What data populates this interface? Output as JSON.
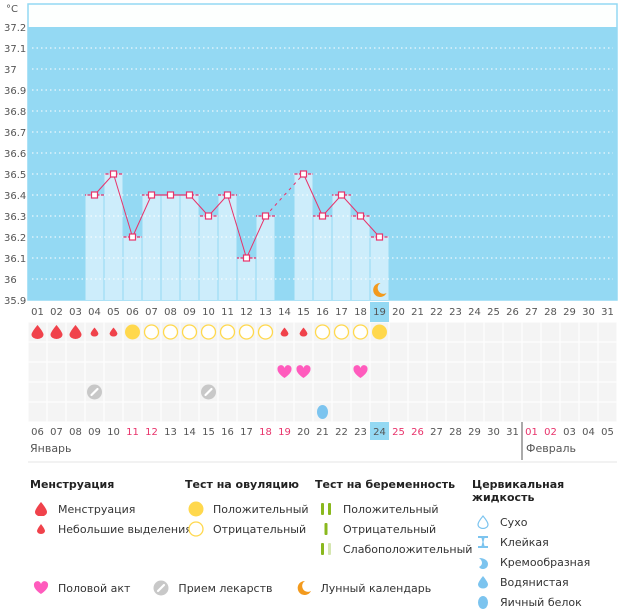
{
  "chart_data": {
    "type": "bar",
    "title": "",
    "ylabel": "°C",
    "ylim": [
      35.9,
      37.2
    ],
    "yticks": [
      "37.2",
      "37.1",
      "37",
      "36.9",
      "36.8",
      "36.7",
      "36.6",
      "36.5",
      "36.4",
      "36.3",
      "36.2",
      "36.1",
      "36",
      "35.9"
    ],
    "cycle_days": [
      "01",
      "02",
      "03",
      "04",
      "05",
      "06",
      "07",
      "08",
      "09",
      "10",
      "11",
      "12",
      "13",
      "14",
      "15",
      "16",
      "17",
      "18",
      "19",
      "20",
      "21",
      "22",
      "23",
      "24",
      "25",
      "26",
      "27",
      "28",
      "29",
      "30",
      "31"
    ],
    "temperatures": [
      null,
      null,
      null,
      36.4,
      36.5,
      36.2,
      36.4,
      36.4,
      36.4,
      36.3,
      36.4,
      36.1,
      36.3,
      null,
      36.5,
      36.3,
      36.4,
      36.3,
      36.2,
      null,
      null,
      null,
      null,
      null,
      null,
      null,
      null,
      null,
      null,
      null,
      null
    ],
    "dashed_segments": [
      [
        13,
        15
      ]
    ],
    "current_cycle_day": 19,
    "lunar_marker_day": 19,
    "calendar_dates": [
      "06",
      "07",
      "08",
      "09",
      "10",
      "11",
      "12",
      "13",
      "14",
      "15",
      "16",
      "17",
      "18",
      "19",
      "20",
      "21",
      "22",
      "23",
      "24",
      "25",
      "26",
      "27",
      "28",
      "29",
      "30",
      "31",
      "01",
      "02",
      "03",
      "04",
      "05"
    ],
    "weekend_dates_index": [
      6,
      7,
      13,
      14,
      20,
      21,
      27,
      28
    ],
    "months": [
      {
        "label": "Январь",
        "start_index": 1
      },
      {
        "label": "Февраль",
        "start_index": 27
      }
    ],
    "rows": {
      "menstruation": [
        "heavy",
        "heavy",
        "heavy",
        "light",
        "light",
        null,
        null,
        null,
        null,
        null,
        null,
        null,
        null,
        "light",
        "light",
        null,
        null,
        null,
        null,
        null,
        null,
        null,
        null,
        null,
        null,
        null,
        null,
        null,
        null,
        null,
        null
      ],
      "ovulation_test": [
        null,
        null,
        null,
        null,
        null,
        "positive",
        "negative",
        "negative",
        "negative",
        "negative",
        "negative",
        "negative",
        "negative",
        null,
        null,
        "negative",
        "negative",
        "negative",
        "positive",
        null,
        null,
        null,
        null,
        null,
        null,
        null,
        null,
        null,
        null,
        null,
        null
      ],
      "intercourse_days": [
        14,
        15,
        18
      ],
      "medication_days": [
        4,
        10
      ],
      "cervical_fluid": [
        {
          "day": 16,
          "type": "egg-white"
        }
      ]
    }
  },
  "legend": {
    "menstruation": {
      "title": "Менструация",
      "items": [
        "Менструация",
        "Небольшие выделения"
      ]
    },
    "ovulation": {
      "title": "Тест на овуляцию",
      "items": [
        "Положительный",
        "Отрицательный"
      ]
    },
    "pregnancy": {
      "title": "Тест на беременность",
      "items": [
        "Положительный",
        "Отрицательный",
        "Слабоположительный"
      ]
    },
    "cervical": {
      "title": "Цервикальная жидкость",
      "items": [
        "Сухо",
        "Клейкая",
        "Кремообразная",
        "Водянистая",
        "Яичный белок"
      ]
    },
    "other": [
      "Половой акт",
      "Прием лекарств",
      "Лунный календарь"
    ]
  },
  "colors": {
    "chart_bg": "#94d9f3",
    "bar": "#cdedfb",
    "line": "#e8336b",
    "menstruation": "#f0424b",
    "ovulation": "#ffd84d",
    "heart": "#ff5bbd",
    "pill": "#c8c8c8",
    "moon": "#f39a1d",
    "fluid": "#7cc4ef",
    "preg": "#8ab81e",
    "preg_faint": "#d5e6b0",
    "highlight": "#94d9f3",
    "weekend": "#e8336b"
  }
}
